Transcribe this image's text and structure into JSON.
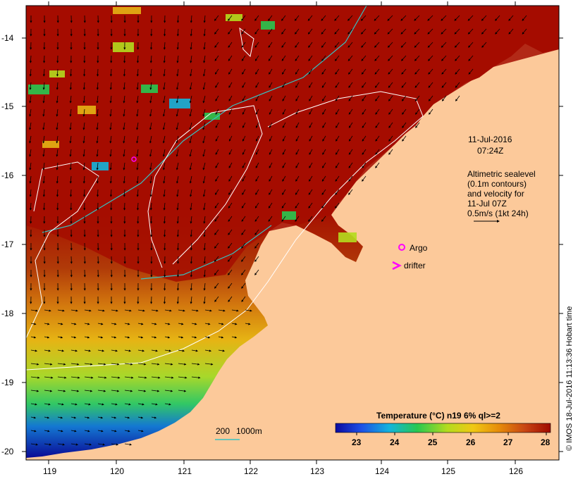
{
  "map": {
    "lon_ticks": [
      "119",
      "120",
      "121",
      "122",
      "123",
      "124",
      "125",
      "126"
    ],
    "lat_ticks": [
      "-14",
      "-15",
      "-16",
      "-17",
      "-18",
      "-19",
      "-20"
    ],
    "colors": {
      "land": "#fcc99a",
      "sea_warm": "#a50d00",
      "contour": "#ffffff",
      "isobath": "#36c2c2",
      "arrows": "#000000",
      "argo": "#ff00ff",
      "drifter": "#ff00ff"
    }
  },
  "annotation": {
    "date": "11-Jul-2016",
    "time": "07:24Z",
    "line1": "Altimetric sealevel",
    "line2": "(0.1m contours)",
    "line3": "and velocity for",
    "line4": "11-Jul 07Z",
    "line5": "0.5m/s (1kt 24h)"
  },
  "legend": {
    "argo": "Argo",
    "drifter": "drifter",
    "isobath_200": "200",
    "isobath_1000": "1000m"
  },
  "colorbar": {
    "title": "Temperature (°C) n19 6% ql>=2",
    "ticks": [
      "23",
      "24",
      "25",
      "26",
      "27",
      "28"
    ],
    "colors": [
      "#0a0aa0",
      "#1e50e6",
      "#14b4dc",
      "#28c850",
      "#b4dc1e",
      "#f0c814",
      "#e68c0a",
      "#c84614",
      "#a00a00"
    ]
  },
  "credit": "© IMOS 18-Jul-2016 11:13:36 Hobart time"
}
